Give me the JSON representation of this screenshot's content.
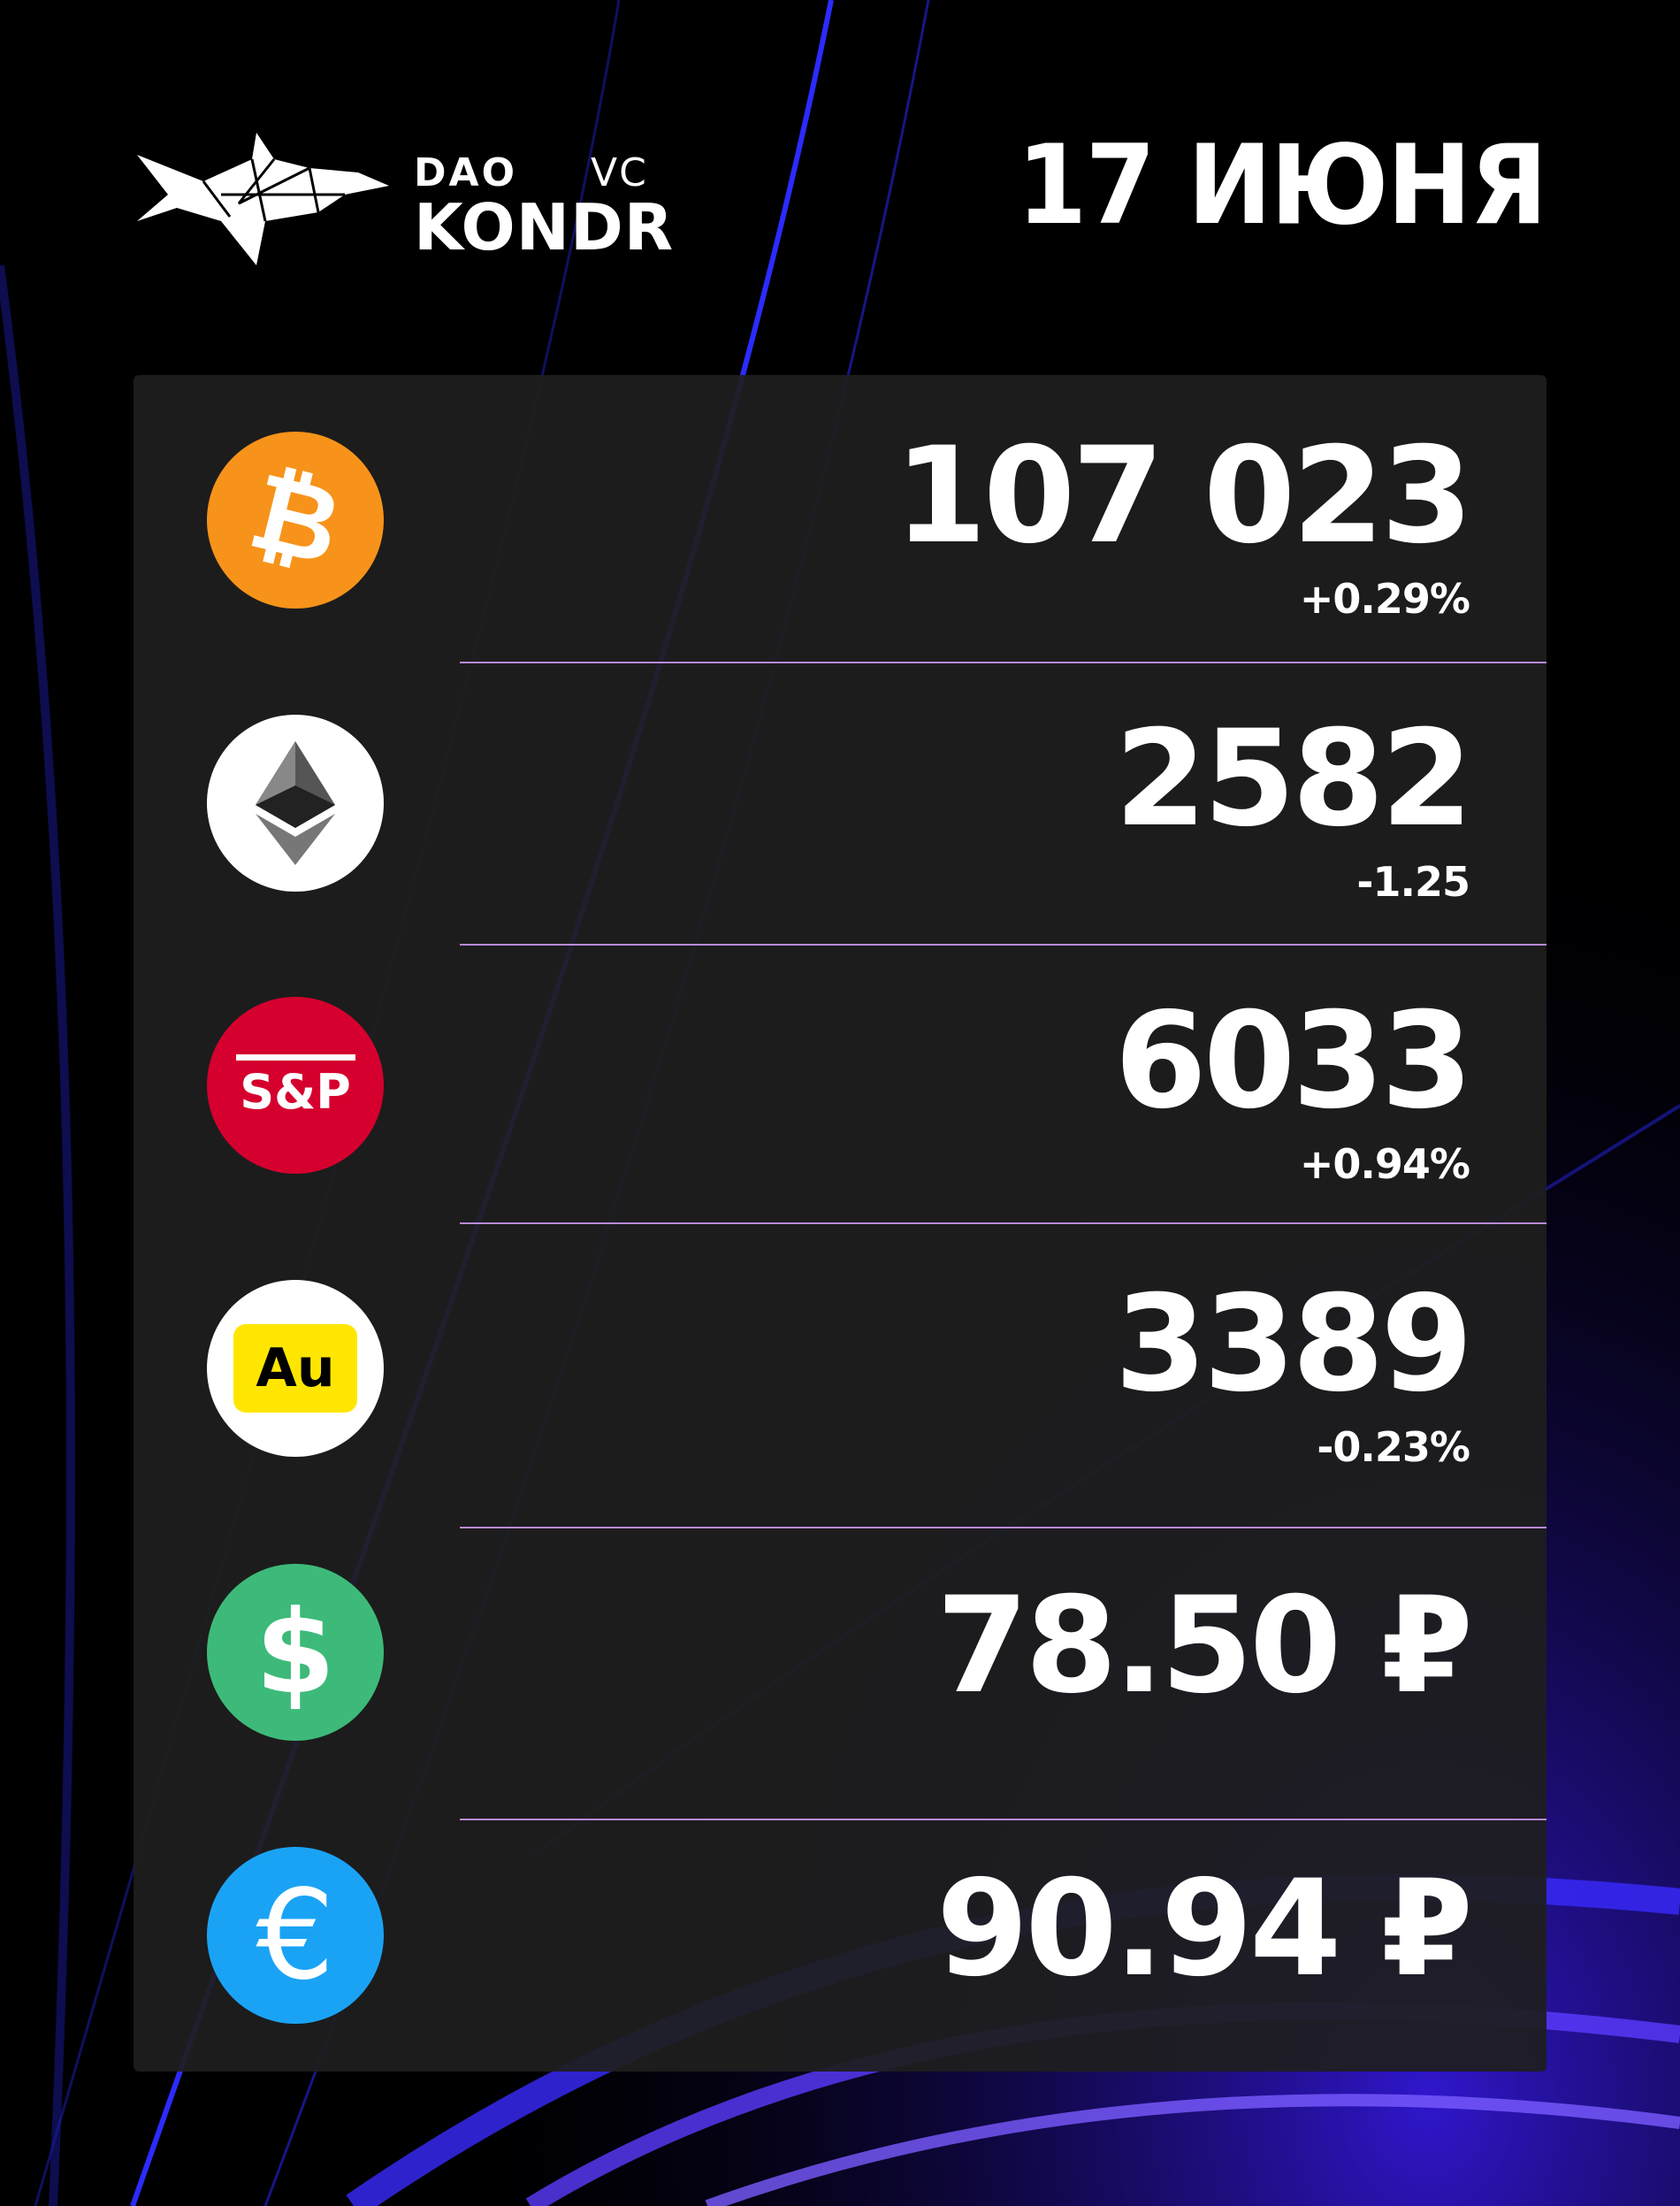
{
  "header": {
    "logo": {
      "line1": "DAO",
      "line1_suffix": "VC",
      "line2": "KONDR"
    },
    "date": "17 ИЮНЯ"
  },
  "rows": [
    {
      "icon": "bitcoin-icon",
      "value": "107 023",
      "change": "+0.29%",
      "color": "#f7931a"
    },
    {
      "icon": "ethereum-icon",
      "value": "2582",
      "change": "-1.25",
      "color": "#ffffff"
    },
    {
      "icon": "sp500-icon",
      "icon_text": "S&P",
      "value": "6033",
      "change": "+0.94%",
      "color": "#d5002e"
    },
    {
      "icon": "gold-icon",
      "icon_text": "Au",
      "value": "3389",
      "change": "-0.23%",
      "color": "#ffffff"
    },
    {
      "icon": "dollar-icon",
      "icon_text": "$",
      "value": "78.50 ₽",
      "change": "",
      "color": "#3dba79"
    },
    {
      "icon": "euro-icon",
      "icon_text": "€",
      "value": "90.94 ₽",
      "change": "",
      "color": "#1aa3f5"
    }
  ]
}
